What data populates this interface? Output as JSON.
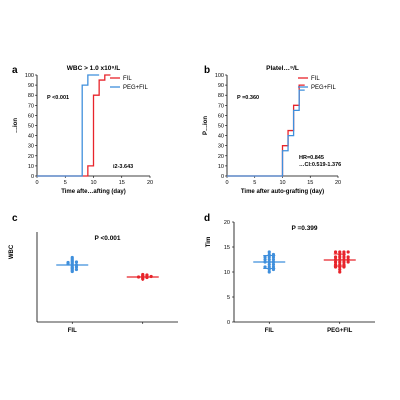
{
  "chart_data": [
    {
      "panel": "a",
      "type": "line",
      "title": "WBC > 1.0 x10⁹/L",
      "xlabel": "Time afte…afting (day)",
      "ylabel": "…ion",
      "xlim": [
        0,
        20
      ],
      "ylim": [
        0,
        100
      ],
      "xticks": [
        "0",
        "5",
        "10",
        "15",
        "20"
      ],
      "yticks": [
        "0",
        "10",
        "20",
        "30",
        "40",
        "50",
        "60",
        "70",
        "80",
        "90",
        "100"
      ],
      "p_label": "P <0.001",
      "annotation": "i2-3.643",
      "legend_position": "top-right",
      "series": [
        {
          "name": "FIL",
          "color": "#e8242b",
          "x": [
            0,
            9,
            9,
            10,
            10,
            11,
            11,
            12,
            12,
            13
          ],
          "y": [
            0,
            0,
            10,
            10,
            80,
            80,
            95,
            95,
            100,
            100
          ]
        },
        {
          "name": "PEG+FIL",
          "color": "#3f8fdc",
          "x": [
            0,
            8,
            8,
            9,
            9,
            10,
            10,
            11
          ],
          "y": [
            0,
            0,
            90,
            90,
            100,
            100,
            100,
            100
          ]
        }
      ]
    },
    {
      "panel": "b",
      "type": "line",
      "title": "Platel…⁹/L",
      "xlabel": "Time after auto-grafting (day)",
      "ylabel": "P…ion",
      "xlim": [
        0,
        20
      ],
      "ylim": [
        0,
        100
      ],
      "xticks": [
        "0",
        "5",
        "10",
        "15",
        "20"
      ],
      "yticks": [
        "0",
        "10",
        "20",
        "30",
        "40",
        "50",
        "60",
        "70",
        "80",
        "90",
        "100"
      ],
      "p_label": "P =0.360",
      "annotations": [
        "HR=0.845",
        "…CI:0.519-1.376"
      ],
      "legend_position": "top-right",
      "series": [
        {
          "name": "FIL",
          "color": "#e8242b",
          "x": [
            0,
            10,
            10,
            11,
            11,
            12,
            12,
            13,
            13,
            14
          ],
          "y": [
            0,
            0,
            30,
            30,
            45,
            45,
            70,
            70,
            90,
            90
          ]
        },
        {
          "name": "PEG+FIL",
          "color": "#3f8fdc",
          "x": [
            0,
            10,
            10,
            11,
            11,
            12,
            12,
            13,
            13,
            14
          ],
          "y": [
            0,
            0,
            25,
            25,
            40,
            40,
            65,
            65,
            85,
            85
          ]
        }
      ]
    },
    {
      "panel": "c",
      "type": "scatter",
      "title": "P <0.001",
      "ylabel": "WBC",
      "categories": [
        "FIL",
        ""
      ],
      "series": [
        {
          "name": "FIL",
          "color": "#3f8fdc",
          "marker": "dot",
          "values": [
            12.9,
            12.3,
            12.1,
            11.5,
            11.2,
            10.9,
            11.8,
            10.6,
            10.3,
            10.1,
            11.4,
            12.6,
            10.8,
            11.0,
            12.0,
            10.5,
            11.6,
            11.9
          ]
        },
        {
          "name": "PEG+FIL",
          "color": "#e8242b",
          "marker": "dot",
          "values": [
            9.5,
            9.3,
            9.1,
            8.9,
            9.2,
            9.0,
            8.8,
            9.4,
            8.6,
            9.1
          ]
        }
      ],
      "group_means": [
        11.4,
        9.0
      ],
      "ylim": [
        0,
        18
      ]
    },
    {
      "panel": "d",
      "type": "scatter",
      "title": "P =0.399",
      "ylabel": "Tim",
      "categories": [
        "FIL",
        "PEG+FIL"
      ],
      "yticks": [
        "0",
        "5",
        "10",
        "15",
        "20"
      ],
      "ylim": [
        0,
        20
      ],
      "series": [
        {
          "name": "FIL",
          "color": "#3f8fdc",
          "marker": "dot",
          "values": [
            10.0,
            10.5,
            11.0,
            11.5,
            11.0,
            12.0,
            12.0,
            12.5,
            12.5,
            13.0,
            13.0,
            13.5,
            14.0,
            10.5,
            11.5,
            13.0,
            12.0,
            12.5,
            11.0,
            13.5
          ]
        },
        {
          "name": "PEG+FIL",
          "color": "#e8242b",
          "marker": "dot",
          "values": [
            10.5,
            11.0,
            11.0,
            11.5,
            12.0,
            12.0,
            12.0,
            12.5,
            12.5,
            13.0,
            13.0,
            13.5,
            14.0,
            14.0,
            11.5,
            12.5,
            13.5,
            10.0,
            14.0,
            12.0,
            11.0,
            13.0,
            12.5,
            11.5,
            13.0,
            14.0
          ]
        }
      ],
      "group_means": [
        12.0,
        12.4
      ],
      "group_sd": [
        1.3,
        1.2
      ]
    }
  ]
}
